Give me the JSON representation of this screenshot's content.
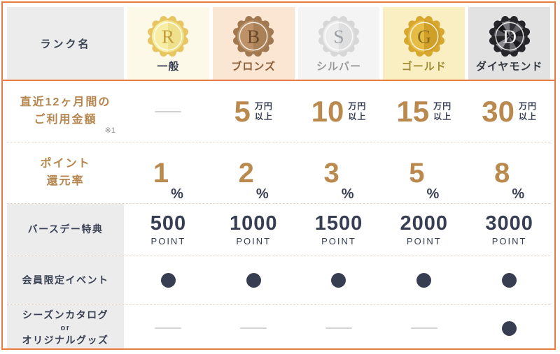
{
  "table": {
    "rank_header_label": "ランク名",
    "colors": {
      "frame_border": "#e97d41",
      "navy_text": "#3a4154",
      "gold_text": "#b9894e",
      "label_bg_gray": "#ececec"
    },
    "ranks": [
      {
        "name": "一般",
        "label_color": "#3a4154",
        "cell_bg": "#fdf9e8",
        "medal": {
          "letter": "R",
          "style": "plain",
          "outer": "#e7c561",
          "inner_light": "#f7eda4",
          "inner_dark": "#efe18c",
          "letter_color": "#c59f3e"
        }
      },
      {
        "name": "ブロンズ",
        "label_color": "#8d5f38",
        "cell_bg": "#fbe6d4",
        "medal": {
          "letter": "B",
          "style": "plain",
          "outer": "#a17850",
          "inner_light": "#bd9268",
          "inner_dark": "#aa8157",
          "letter_color": "#6b4729"
        }
      },
      {
        "name": "シルバー",
        "label_color": "#9a9a9a",
        "cell_bg": "#f4f4f4",
        "medal": {
          "letter": "S",
          "style": "plain",
          "outer": "#d7d7d7",
          "inner_light": "#ececec",
          "inner_dark": "#dfdfdf",
          "letter_color": "#9aa0a6"
        }
      },
      {
        "name": "ゴールド",
        "label_color": "#a18f35",
        "cell_bg": "#f9efc3",
        "medal": {
          "letter": "G",
          "style": "plain",
          "outer": "#d8a72e",
          "inner_light": "#e6bc45",
          "inner_dark": "#cf9f27",
          "letter_color": "#8a6c22"
        }
      },
      {
        "name": "ダイヤモンド",
        "label_color": "#33383f",
        "cell_bg": "#e2e2e2",
        "medal": {
          "letter": "D",
          "style": "faceted",
          "outer": "#26262a",
          "inner_light": "#6a6a70",
          "inner_dark": "#1b1b1f",
          "letter_color": "#f2f2f4"
        }
      }
    ],
    "rows": [
      {
        "label_lines": [
          {
            "t": "直近12ヶ月間の"
          },
          {
            "t": "ご利用金額"
          }
        ],
        "label_style": "gold",
        "note": "※1",
        "cells": [
          {
            "type": "dash"
          },
          {
            "type": "amount",
            "value": "5",
            "unit_lines": [
              "万円",
              "以上"
            ]
          },
          {
            "type": "amount",
            "value": "10",
            "unit_lines": [
              "万円",
              "以上"
            ]
          },
          {
            "type": "amount",
            "value": "15",
            "unit_lines": [
              "万円",
              "以上"
            ]
          },
          {
            "type": "amount",
            "value": "30",
            "unit_lines": [
              "万円",
              "以上"
            ]
          }
        ]
      },
      {
        "label_lines": [
          {
            "t": "ポイント"
          },
          {
            "t": "還元率"
          }
        ],
        "label_style": "gold",
        "cells": [
          {
            "type": "percent",
            "value": "1",
            "suffix": "%"
          },
          {
            "type": "percent",
            "value": "2",
            "suffix": "%"
          },
          {
            "type": "percent",
            "value": "3",
            "suffix": "%"
          },
          {
            "type": "percent",
            "value": "5",
            "suffix": "%"
          },
          {
            "type": "percent",
            "value": "8",
            "suffix": "%"
          }
        ]
      },
      {
        "label_lines": [
          {
            "t": "バースデー特典"
          }
        ],
        "label_style": "navy",
        "cells": [
          {
            "type": "point",
            "value": "500",
            "unit": "POINT"
          },
          {
            "type": "point",
            "value": "1000",
            "unit": "POINT"
          },
          {
            "type": "point",
            "value": "1500",
            "unit": "POINT"
          },
          {
            "type": "point",
            "value": "2000",
            "unit": "POINT"
          },
          {
            "type": "point",
            "value": "3000",
            "unit": "POINT"
          }
        ]
      },
      {
        "label_lines": [
          {
            "t": "会員限定イベント"
          }
        ],
        "label_style": "navy",
        "cells": [
          {
            "type": "circle"
          },
          {
            "type": "circle"
          },
          {
            "type": "circle"
          },
          {
            "type": "circle"
          },
          {
            "type": "circle"
          }
        ]
      },
      {
        "label_lines": [
          {
            "t": "シーズンカタログ"
          },
          {
            "t": "or",
            "small": true
          },
          {
            "t": "オリジナルグッズ"
          }
        ],
        "label_style": "navy",
        "cells": [
          {
            "type": "dash"
          },
          {
            "type": "dash"
          },
          {
            "type": "dash"
          },
          {
            "type": "dash"
          },
          {
            "type": "circle"
          }
        ]
      }
    ]
  }
}
